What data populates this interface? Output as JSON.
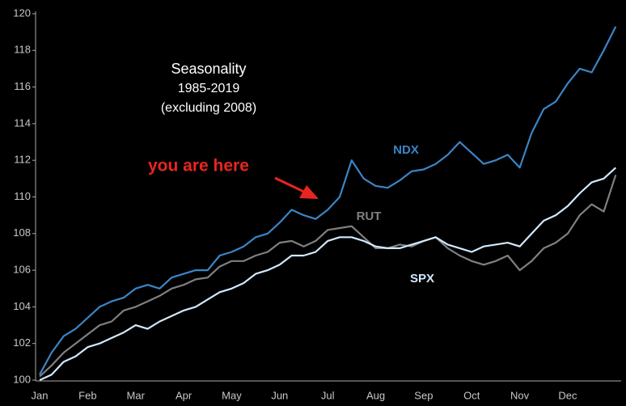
{
  "chart_data": {
    "type": "line",
    "title": "Seasonality",
    "subtitle": [
      "1985-2019",
      "(excluding 2008)"
    ],
    "annotations": [
      {
        "text": "you are here",
        "color": "#e8251f"
      }
    ],
    "categories": [
      "Jan",
      null,
      null,
      null,
      "Feb",
      null,
      null,
      null,
      "Mar",
      null,
      null,
      null,
      "Apr",
      null,
      null,
      null,
      "May",
      null,
      null,
      null,
      "Jun",
      null,
      null,
      null,
      "Jul",
      null,
      null,
      null,
      "Aug",
      null,
      null,
      null,
      "Sep",
      null,
      null,
      null,
      "Oct",
      null,
      null,
      null,
      "Nov",
      null,
      null,
      null,
      "Dec",
      null,
      null,
      null,
      null
    ],
    "ylim": [
      100,
      120
    ],
    "yticks": [
      100,
      102,
      104,
      106,
      108,
      110,
      112,
      114,
      116,
      118,
      120
    ],
    "series": [
      {
        "name": "NDX",
        "color": "#3a86c8",
        "values": [
          100.3,
          101.5,
          102.4,
          102.8,
          103.4,
          104.0,
          104.3,
          104.5,
          105.0,
          105.2,
          105.0,
          105.6,
          105.8,
          106.0,
          106.0,
          106.8,
          107.0,
          107.3,
          107.8,
          108.0,
          108.6,
          109.3,
          109.0,
          108.8,
          109.3,
          110.0,
          112.0,
          111.0,
          110.6,
          110.5,
          110.9,
          111.4,
          111.5,
          111.8,
          112.3,
          113.0,
          112.4,
          111.8,
          112.0,
          112.3,
          111.6,
          113.5,
          114.8,
          115.2,
          116.2,
          117.0,
          116.8,
          118.0,
          119.3
        ]
      },
      {
        "name": "RUT",
        "color": "#808080",
        "values": [
          100.2,
          100.8,
          101.5,
          102.0,
          102.5,
          103.0,
          103.2,
          103.8,
          104.0,
          104.3,
          104.6,
          105.0,
          105.2,
          105.5,
          105.6,
          106.2,
          106.5,
          106.5,
          106.8,
          107.0,
          107.5,
          107.6,
          107.3,
          107.6,
          108.2,
          108.3,
          108.4,
          107.8,
          107.2,
          107.2,
          107.4,
          107.3,
          107.6,
          107.8,
          107.2,
          106.8,
          106.5,
          106.3,
          106.5,
          106.8,
          106.0,
          106.5,
          107.2,
          107.5,
          108.0,
          109.0,
          109.6,
          109.2,
          111.2
        ]
      },
      {
        "name": "SPX",
        "color": "#d2e9ff",
        "values": [
          100.0,
          100.3,
          101.0,
          101.3,
          101.8,
          102.0,
          102.3,
          102.6,
          103.0,
          102.8,
          103.2,
          103.5,
          103.8,
          104.0,
          104.4,
          104.8,
          105.0,
          105.3,
          105.8,
          106.0,
          106.3,
          106.8,
          106.8,
          107.0,
          107.6,
          107.8,
          107.8,
          107.6,
          107.3,
          107.2,
          107.2,
          107.4,
          107.6,
          107.8,
          107.4,
          107.2,
          107.0,
          107.3,
          107.4,
          107.5,
          107.3,
          108.0,
          108.7,
          109.0,
          109.5,
          110.2,
          110.8,
          111.0,
          111.6
        ]
      }
    ]
  }
}
